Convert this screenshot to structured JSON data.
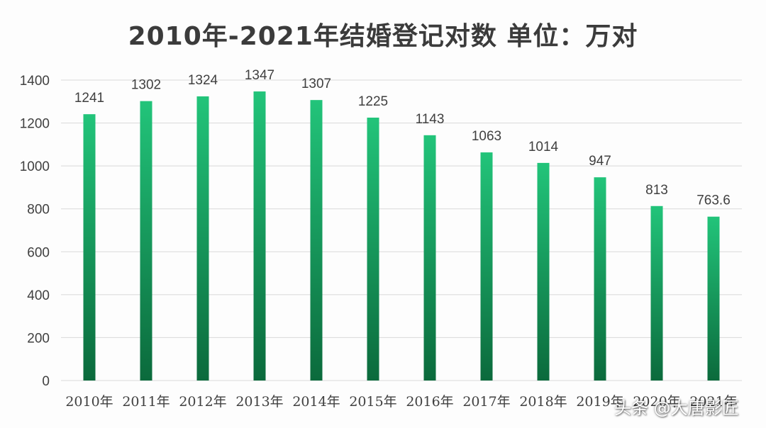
{
  "chart_data": {
    "type": "bar",
    "title": "2010年-2021年结婚登记对数  单位：万对",
    "categories": [
      "2010年",
      "2011年",
      "2012年",
      "2013年",
      "2014年",
      "2015年",
      "2016年",
      "2017年",
      "2018年",
      "2019年",
      "2020年",
      "2021年"
    ],
    "values": [
      1241,
      1302,
      1324,
      1347,
      1307,
      1225,
      1143,
      1063,
      1014,
      947,
      813,
      763.6
    ],
    "value_labels": [
      "1241",
      "1302",
      "1324",
      "1347",
      "1307",
      "1225",
      "1143",
      "1063",
      "1014",
      "947",
      "813",
      "763.6"
    ],
    "ylim": [
      0,
      1400
    ],
    "yticks": [
      0,
      200,
      400,
      600,
      800,
      1000,
      1200,
      1400
    ],
    "grid": true,
    "legend": "none",
    "colors": {
      "bar_top": "#22c47a",
      "bar_bottom": "#0b6a3c",
      "grid": "#d9d9d9",
      "text": "#404040"
    }
  },
  "watermark": "头条 @大唐影匠"
}
